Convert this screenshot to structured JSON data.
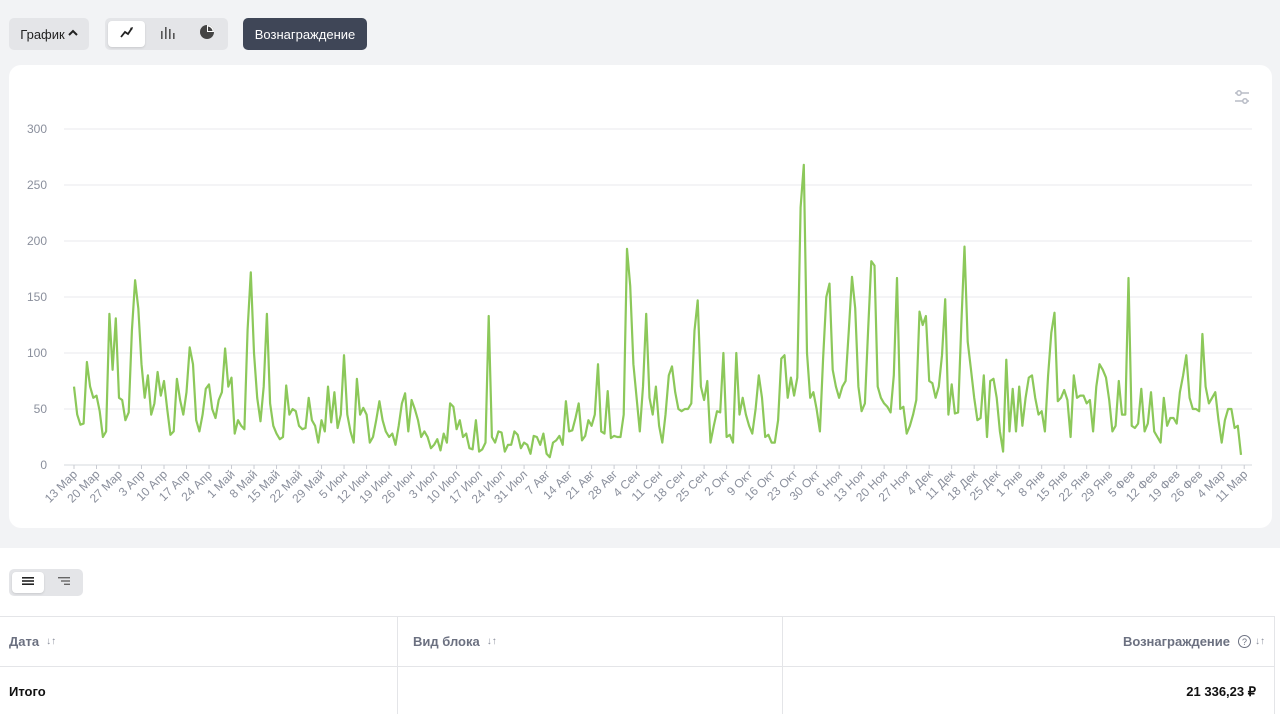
{
  "toolbar": {
    "grafik_label": "График",
    "chart_types": [
      "line-chart-icon",
      "bar-chart-icon",
      "pie-chart-icon"
    ],
    "reward_label": "Вознаграждение"
  },
  "colors": {
    "line": "#8cc85a",
    "grid": "#e8e9ec",
    "axis_text": "#8a8f9c",
    "dark_button": "#3f4657"
  },
  "table": {
    "headers": {
      "date": "Дата",
      "block": "Вид блока",
      "reward": "Вознаграждение"
    },
    "total": {
      "label": "Итого",
      "value": "21 336,23 ₽"
    }
  },
  "chart_data": {
    "type": "line",
    "title": "",
    "ylabel": "",
    "xlabel": "",
    "ylim": [
      0,
      300
    ],
    "yticks": [
      0,
      50,
      100,
      150,
      200,
      250,
      300
    ],
    "grid": true,
    "x_tick_labels": [
      "13 Мар",
      "20 Мар",
      "27 Мар",
      "3 Апр",
      "10 Апр",
      "17 Апр",
      "24 Апр",
      "1 Май",
      "8 Май",
      "15 Май",
      "22 Май",
      "29 Май",
      "5 Июн",
      "12 Июн",
      "19 Июн",
      "26 Июн",
      "3 Июл",
      "10 Июл",
      "17 Июл",
      "24 Июл",
      "31 Июл",
      "7 Авг",
      "14 Авг",
      "21 Авг",
      "28 Авг",
      "4 Сен",
      "11 Сен",
      "18 Сен",
      "25 Сен",
      "2 Окт",
      "9 Окт",
      "16 Окт",
      "23 Окт",
      "30 Окт",
      "6 Ноя",
      "13 Ноя",
      "20 Ноя",
      "27 Ноя",
      "4 Дек",
      "11 Дек",
      "18 Дек",
      "25 Дек",
      "1 Янв",
      "8 Янв",
      "15 Янв",
      "22 Янв",
      "29 Янв",
      "5 Фев",
      "12 Фев",
      "19 Фев",
      "26 Фев",
      "4 Мар",
      "11 Мар"
    ],
    "values": [
      70,
      45,
      36,
      37,
      92,
      70,
      60,
      62,
      48,
      25,
      30,
      135,
      85,
      131,
      60,
      58,
      40,
      47,
      120,
      165,
      140,
      90,
      60,
      80,
      45,
      55,
      83,
      62,
      75,
      50,
      27,
      30,
      77,
      58,
      45,
      65,
      105,
      90,
      40,
      30,
      45,
      68,
      72,
      50,
      42,
      58,
      65,
      104,
      70,
      78,
      28,
      40,
      35,
      32,
      121,
      172,
      100,
      60,
      39,
      70,
      135,
      55,
      35,
      28,
      23,
      25,
      71,
      45,
      50,
      48,
      35,
      32,
      33,
      60,
      40,
      35,
      20,
      40,
      30,
      70,
      38,
      65,
      33,
      45,
      98,
      45,
      30,
      20,
      77,
      45,
      51,
      45,
      20,
      25,
      40,
      57,
      40,
      30,
      25,
      28,
      18,
      35,
      55,
      64,
      30,
      58,
      50,
      40,
      25,
      30,
      25,
      15,
      18,
      23,
      13,
      28,
      20,
      55,
      52,
      32,
      40,
      25,
      28,
      15,
      14,
      40,
      12,
      14,
      20,
      133,
      25,
      20,
      30,
      29,
      12,
      18,
      18,
      30,
      27,
      15,
      20,
      18,
      10,
      26,
      25,
      18,
      28,
      10,
      7,
      20,
      22,
      26,
      18,
      57,
      30,
      31,
      42,
      55,
      22,
      26,
      40,
      35,
      45,
      90,
      30,
      28,
      66,
      24,
      26,
      25,
      25,
      45,
      193,
      160,
      90,
      60,
      30,
      70,
      135,
      60,
      45,
      70,
      35,
      20,
      45,
      80,
      88,
      65,
      50,
      48,
      50,
      50,
      55,
      120,
      147,
      70,
      58,
      75,
      20,
      35,
      48,
      47,
      100,
      25,
      27,
      20,
      100,
      45,
      60,
      45,
      35,
      28,
      50,
      80,
      60,
      25,
      27,
      20,
      20,
      40,
      95,
      98,
      60,
      78,
      62,
      78,
      230,
      268,
      100,
      60,
      65,
      50,
      30,
      95,
      150,
      162,
      85,
      70,
      60,
      70,
      75,
      120,
      168,
      140,
      70,
      48,
      55,
      120,
      182,
      178,
      70,
      60,
      55,
      52,
      47,
      80,
      167,
      50,
      52,
      28,
      35,
      45,
      58,
      137,
      125,
      133,
      75,
      73,
      60,
      70,
      98,
      148,
      45,
      72,
      46,
      47,
      125,
      195,
      110,
      85,
      60,
      40,
      42,
      80,
      25,
      75,
      77,
      60,
      30,
      12,
      94,
      30,
      68,
      30,
      70,
      35,
      60,
      78,
      80,
      60,
      45,
      48,
      30,
      80,
      118,
      136,
      57,
      60,
      67,
      58,
      25,
      80,
      60,
      62,
      62,
      55,
      58,
      30,
      70,
      90,
      85,
      78,
      58,
      30,
      35,
      75,
      45,
      45,
      167,
      35,
      33,
      37,
      68,
      30,
      37,
      65,
      30,
      25,
      20,
      60,
      35,
      42,
      42,
      37,
      65,
      80,
      98,
      60,
      50,
      50,
      48,
      117,
      70,
      55,
      60,
      65,
      40,
      20,
      40,
      50,
      50,
      33,
      35,
      9
    ]
  }
}
